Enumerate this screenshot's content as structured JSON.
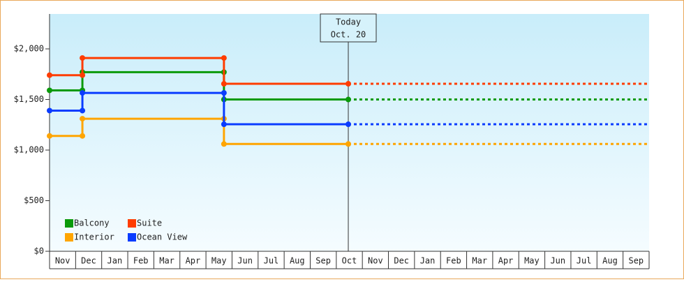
{
  "chart_data": {
    "type": "step-line",
    "categories": [
      "Nov",
      "Dec",
      "Jan",
      "Feb",
      "Mar",
      "Apr",
      "May",
      "Jun",
      "Jul",
      "Aug",
      "Sep",
      "Oct",
      "Nov",
      "Dec",
      "Jan",
      "Feb",
      "Mar",
      "Apr",
      "May",
      "Jun",
      "Jul",
      "Aug",
      "Sep"
    ],
    "x": [
      0,
      1.26,
      6.69,
      11.46
    ],
    "xlim": [
      0,
      23
    ],
    "ylim": [
      0,
      2345
    ],
    "yticks": [
      {
        "value": 0,
        "label": "$0"
      },
      {
        "value": 500,
        "label": "$500"
      },
      {
        "value": 1000,
        "label": "$1,000"
      },
      {
        "value": 1500,
        "label": "$1,500"
      },
      {
        "value": 2000,
        "label": "$2,000"
      }
    ],
    "series": [
      {
        "name": "Balcony",
        "color": "#0a9a0a",
        "values": [
          1590,
          1770,
          1500,
          1500
        ]
      },
      {
        "name": "Suite",
        "color": "#ff3c00",
        "values": [
          1740,
          1910,
          1655,
          1655
        ]
      },
      {
        "name": "Interior",
        "color": "#ffa500",
        "values": [
          1140,
          1310,
          1060,
          1060
        ]
      },
      {
        "name": "Ocean View",
        "color": "#0a3cff",
        "values": [
          1390,
          1565,
          1255,
          1255
        ]
      }
    ],
    "annotation": {
      "x": 11.46,
      "lines": [
        "Today",
        "Oct. 20"
      ]
    },
    "legend": "lower left"
  }
}
